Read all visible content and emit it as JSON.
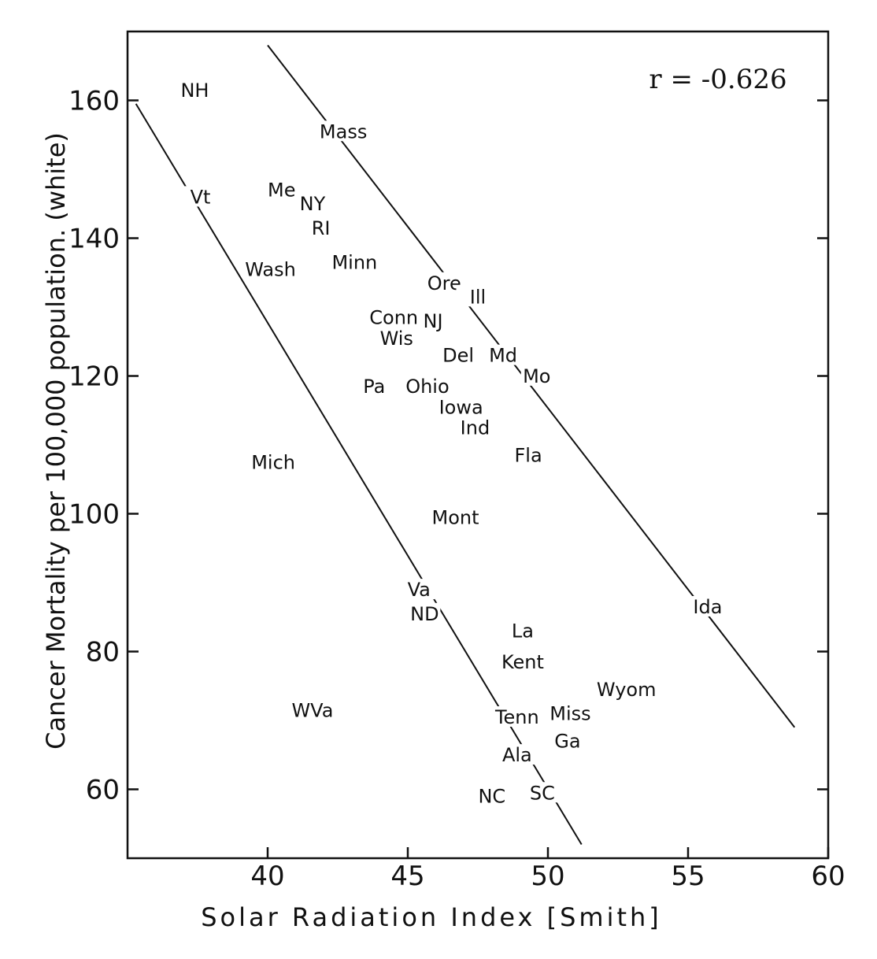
{
  "chart_data": {
    "type": "scatter",
    "title": "",
    "xlabel": "Solar Radiation Index [Smith]",
    "ylabel": "Cancer Mortality per 100,000 population. (white)",
    "annotation": "r = -0.626",
    "xlim": [
      35,
      60
    ],
    "ylim": [
      50,
      170
    ],
    "xticks": [
      40,
      45,
      50,
      55,
      60
    ],
    "yticks": [
      60,
      80,
      100,
      120,
      140,
      160
    ],
    "grid": false,
    "legend": "none",
    "points": [
      {
        "label": "NH",
        "x": 37.4,
        "y": 161
      },
      {
        "label": "Mass",
        "x": 42.7,
        "y": 155
      },
      {
        "label": "Vt",
        "x": 37.6,
        "y": 145.5
      },
      {
        "label": "Me",
        "x": 40.5,
        "y": 146.5
      },
      {
        "label": "NY",
        "x": 41.6,
        "y": 144.5
      },
      {
        "label": "RI",
        "x": 41.9,
        "y": 141
      },
      {
        "label": "Minn",
        "x": 43.1,
        "y": 136
      },
      {
        "label": "Wash",
        "x": 40.1,
        "y": 135
      },
      {
        "label": "Ore",
        "x": 46.3,
        "y": 133
      },
      {
        "label": "Ill",
        "x": 47.5,
        "y": 131
      },
      {
        "label": "Conn",
        "x": 44.5,
        "y": 128
      },
      {
        "label": "NJ",
        "x": 45.9,
        "y": 127.5
      },
      {
        "label": "Wis",
        "x": 44.6,
        "y": 125
      },
      {
        "label": "Del",
        "x": 46.8,
        "y": 122.5
      },
      {
        "label": "Md",
        "x": 48.4,
        "y": 122.5
      },
      {
        "label": "Mo",
        "x": 49.6,
        "y": 119.5
      },
      {
        "label": "Pa",
        "x": 43.8,
        "y": 118
      },
      {
        "label": "Ohio",
        "x": 45.7,
        "y": 118
      },
      {
        "label": "Iowa",
        "x": 46.9,
        "y": 115
      },
      {
        "label": "Ind",
        "x": 47.4,
        "y": 112
      },
      {
        "label": "Fla",
        "x": 49.3,
        "y": 108
      },
      {
        "label": "Mich",
        "x": 40.2,
        "y": 107
      },
      {
        "label": "Mont",
        "x": 46.7,
        "y": 99
      },
      {
        "label": "Va",
        "x": 45.4,
        "y": 88.5
      },
      {
        "label": "ND",
        "x": 45.6,
        "y": 85
      },
      {
        "label": "Ida",
        "x": 55.7,
        "y": 86
      },
      {
        "label": "La",
        "x": 49.1,
        "y": 82.5
      },
      {
        "label": "Kent",
        "x": 49.1,
        "y": 78
      },
      {
        "label": "Wyom",
        "x": 52.8,
        "y": 74
      },
      {
        "label": "WVa",
        "x": 41.6,
        "y": 71
      },
      {
        "label": "Tenn",
        "x": 48.9,
        "y": 70
      },
      {
        "label": "Miss",
        "x": 50.8,
        "y": 70.5
      },
      {
        "label": "Ga",
        "x": 50.7,
        "y": 66.5
      },
      {
        "label": "Ala",
        "x": 48.9,
        "y": 64.5
      },
      {
        "label": "NC",
        "x": 48.0,
        "y": 58.5
      },
      {
        "label": "SC",
        "x": 49.8,
        "y": 59
      }
    ],
    "boundary_lines": [
      {
        "x": [
          35.3,
          51.2
        ],
        "y": [
          159.5,
          52
        ]
      },
      {
        "x": [
          40.0,
          58.8
        ],
        "y": [
          168,
          69
        ]
      }
    ]
  }
}
